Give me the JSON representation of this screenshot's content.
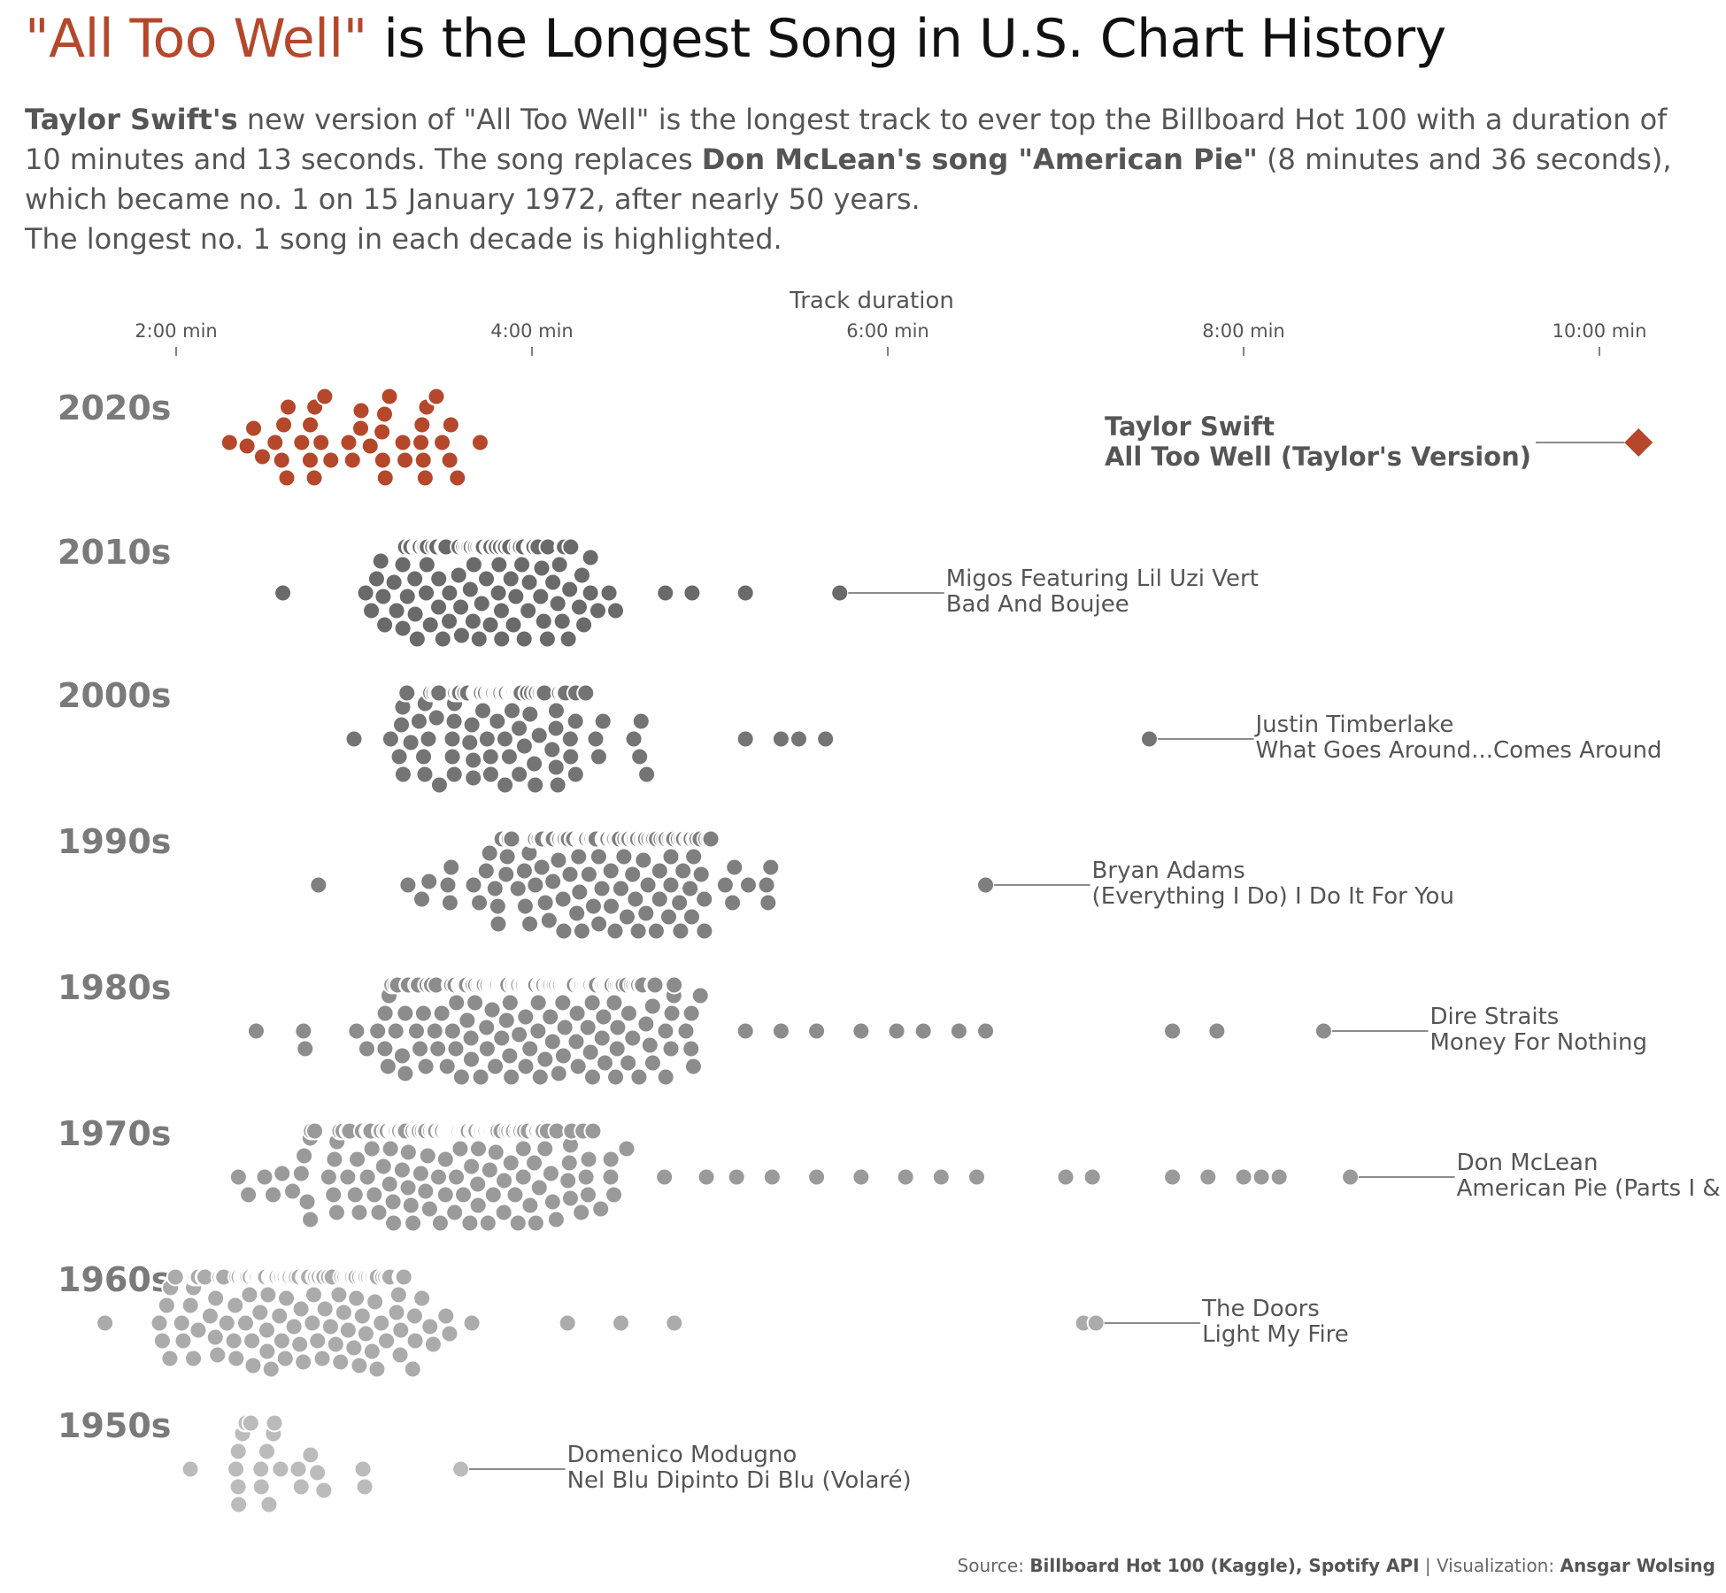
{
  "header": {
    "title_highlight": "\"All Too Well\"",
    "title_rest": " is the Longest Song in U.S. Chart History",
    "subtitle": {
      "p1_bold": "Taylor Swift's",
      "p1": " new version of \"All Too Well\" is the longest track to ever top the Billboard Hot 100 with a duration of 10 minutes and 13 seconds. The song replaces ",
      "p2_bold": "Don McLean's song \"American Pie\"",
      "p2": " (8 minutes and 36 seconds), which became no. 1 on 15 January 1972, after nearly 50 years.",
      "p3": "The longest no. 1 song in each decade is highlighted."
    }
  },
  "caption": {
    "source_label": "Source: ",
    "source": "Billboard Hot 100 (Kaggle), Spotify API",
    "separator": " | Visualization: ",
    "author": "Ansgar Wolsing"
  },
  "colors": {
    "highlight": "#b5472b",
    "decade_colors": [
      "#bbbbbb",
      "#ababab",
      "#9a9a9a",
      "#8c8c8c",
      "#7f7f7f",
      "#747474",
      "#6a6a6a",
      "#b5472b"
    ],
    "label": "#555555",
    "axis": "#555555"
  },
  "chart_data": {
    "type": "scatter",
    "subtype": "beeswarm",
    "title": "\"All Too Well\" is the Longest Song in U.S. Chart History",
    "xlabel": "Track duration",
    "x_unit": "minutes",
    "xlim": [
      1.55,
      10.5
    ],
    "x_ticks": [
      2,
      4,
      6,
      8,
      10
    ],
    "x_tick_labels": [
      "2:00 min",
      "4:00 min",
      "6:00 min",
      "8:00 min",
      "10:00 min"
    ],
    "axis_position": "top",
    "grid": false,
    "legend": "none",
    "categories": [
      "1950s",
      "1960s",
      "1970s",
      "1980s",
      "1990s",
      "2000s",
      "2010s",
      "2020s"
    ],
    "series": [
      {
        "name": "1950s",
        "count": 22,
        "min": 2.08,
        "core": [
          2.2,
          2.8
        ],
        "center": 2.45,
        "spread": 0.45,
        "outliers": [
          2.83,
          3.05,
          3.06
        ],
        "longest": {
          "x": 3.6,
          "artist": "Domenico Modugno",
          "song": "Nel Blu Dipinto Di Blu (Volaré)"
        }
      },
      {
        "name": "1960s",
        "count": 220,
        "min": 1.6,
        "core": [
          1.83,
          4.0
        ],
        "center": 2.7,
        "spread": 0.7,
        "outliers": [
          4.2,
          4.5,
          4.8,
          7.1
        ],
        "longest": {
          "x": 7.17,
          "artist": "The Doors",
          "song": "Light My Fire"
        }
      },
      {
        "name": "1970s",
        "count": 270,
        "min": 2.35,
        "core": [
          2.35,
          5.0
        ],
        "center": 3.6,
        "spread": 0.75,
        "outliers": [
          5.15,
          5.35,
          5.6,
          5.85,
          6.1,
          6.3,
          6.5,
          7.0,
          7.15,
          7.6,
          7.8,
          8.0,
          8.1,
          8.2
        ],
        "longest": {
          "x": 8.6,
          "artist": "Don McLean",
          "song": "American Pie (Parts I & II)"
        }
      },
      {
        "name": "1980s",
        "count": 300,
        "min": 2.45,
        "core": [
          2.7,
          5.0
        ],
        "center": 4.0,
        "spread": 0.7,
        "outliers": [
          5.2,
          5.4,
          5.6,
          5.85,
          6.05,
          6.2,
          6.4,
          6.55,
          7.6,
          7.85
        ],
        "longest": {
          "x": 8.45,
          "artist": "Dire Straits",
          "song": "Money For Nothing"
        }
      },
      {
        "name": "1990s",
        "count": 200,
        "min": 2.8,
        "core": [
          2.8,
          5.8
        ],
        "center": 4.4,
        "spread": 0.7,
        "outliers": [],
        "longest": {
          "x": 6.55,
          "artist": "Bryan Adams",
          "song": "(Everything I Do) I Do It For You"
        }
      },
      {
        "name": "2000s",
        "count": 150,
        "min": 3.0,
        "core": [
          3.2,
          5.0
        ],
        "center": 3.8,
        "spread": 0.55,
        "outliers": [
          5.2,
          5.4,
          5.5,
          5.65
        ],
        "longest": {
          "x": 7.47,
          "artist": "Justin Timberlake",
          "song": "What Goes Around...Comes Around"
        }
      },
      {
        "name": "2010s",
        "count": 140,
        "min": 2.6,
        "core": [
          2.6,
          4.5
        ],
        "center": 3.7,
        "spread": 0.55,
        "outliers": [
          4.75,
          4.9,
          5.2
        ],
        "longest": {
          "x": 5.73,
          "artist": "Migos Featuring Lil Uzi Vert",
          "song": "Bad And Boujee"
        }
      },
      {
        "name": "2020s",
        "count": 42,
        "min": 2.3,
        "core": [
          2.3,
          4.35
        ],
        "center": 3.1,
        "spread": 0.7,
        "outliers": [],
        "longest": {
          "x": 10.22,
          "artist": "Taylor Swift",
          "song": "All Too Well (Taylor's Version)"
        }
      }
    ]
  }
}
